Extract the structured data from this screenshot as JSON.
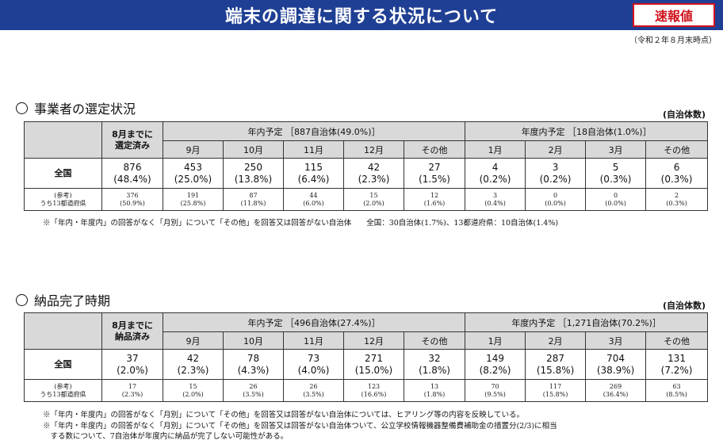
{
  "title": "端末の調達に関する状況について",
  "badge": "速報値",
  "as_of": "（令和２年８月末時点）",
  "section1": {
    "heading": "事業者の選定状況",
    "unit": "(自治体数)",
    "col_upto": [
      "8月までに",
      "選定済み"
    ],
    "group_year": "年内予定 ［887自治体(49.0%)］",
    "group_fiscal": "年度内予定 ［18自治体(1.0%)］",
    "months": [
      "9月",
      "10月",
      "11月",
      "12月",
      "その他",
      "1月",
      "2月",
      "3月",
      "その他"
    ],
    "row_main_label": "全国",
    "row_main": [
      [
        "876",
        "(48.4%)"
      ],
      [
        "453",
        "(25.0%)"
      ],
      [
        "250",
        "(13.8%)"
      ],
      [
        "115",
        "(6.4%)"
      ],
      [
        "42",
        "(2.3%)"
      ],
      [
        "27",
        "(1.5%)"
      ],
      [
        "4",
        "(0.2%)"
      ],
      [
        "3",
        "(0.2%)"
      ],
      [
        "5",
        "(0.3%)"
      ],
      [
        "6",
        "(0.3%)"
      ]
    ],
    "row_ref_label": [
      "(参考)",
      "うち13都道府県"
    ],
    "row_ref": [
      [
        "376",
        "(50.9%)"
      ],
      [
        "191",
        "(25.8%)"
      ],
      [
        "87",
        "(11.8%)"
      ],
      [
        "44",
        "(6.0%)"
      ],
      [
        "15",
        "(2.0%)"
      ],
      [
        "12",
        "(1.6%)"
      ],
      [
        "3",
        "(0.4%)"
      ],
      [
        "0",
        "(0.0%)"
      ],
      [
        "0",
        "(0.0%)"
      ],
      [
        "2",
        "(0.3%)"
      ]
    ],
    "note": "※「年内・年度内」の回答がなく「月別」について「その他」を回答又は回答がない自治体　　全国：30自治体(1.7%)、13都道府県：10自治体(1.4%)"
  },
  "section2": {
    "heading": "納品完了時期",
    "unit": "(自治体数)",
    "col_upto": [
      "8月までに",
      "納品済み"
    ],
    "group_year": "年内予定 ［496自治体(27.4%)］",
    "group_fiscal": "年度内予定 ［1,271自治体(70.2%)］",
    "months": [
      "9月",
      "10月",
      "11月",
      "12月",
      "その他",
      "1月",
      "2月",
      "3月",
      "その他"
    ],
    "row_main_label": "全国",
    "row_main": [
      [
        "37",
        "(2.0%)"
      ],
      [
        "42",
        "(2.3%)"
      ],
      [
        "78",
        "(4.3%)"
      ],
      [
        "73",
        "(4.0%)"
      ],
      [
        "271",
        "(15.0%)"
      ],
      [
        "32",
        "(1.8%)"
      ],
      [
        "149",
        "(8.2%)"
      ],
      [
        "287",
        "(15.8%)"
      ],
      [
        "704",
        "(38.9%)"
      ],
      [
        "131",
        "(7.2%)"
      ]
    ],
    "row_ref_label": [
      "(参考)",
      "うち13都道府県"
    ],
    "row_ref": [
      [
        "17",
        "(2.3%)"
      ],
      [
        "15",
        "(2.0%)"
      ],
      [
        "26",
        "(3.5%)"
      ],
      [
        "26",
        "(3.5%)"
      ],
      [
        "123",
        "(16.6%)"
      ],
      [
        "13",
        "(1.8%)"
      ],
      [
        "70",
        "(9.5%)"
      ],
      [
        "117",
        "(15.8%)"
      ],
      [
        "269",
        "(36.4%)"
      ],
      [
        "63",
        "(8.5%)"
      ]
    ],
    "note1": "※「年内・年度内」の回答がなく「月別」について「その他」を回答又は回答がない自治体については、ヒアリング等の内容を反映している。",
    "note2a": "※「年内・年度内」の回答がなく「月別」について「その他」を回答又は回答がない自治体ついて、公立学校情報機器整備費補助金の措置分(2/3)に相当",
    "note2b": "　する数について、7自治体が年度内に納品が完了しない可能性がある。"
  }
}
